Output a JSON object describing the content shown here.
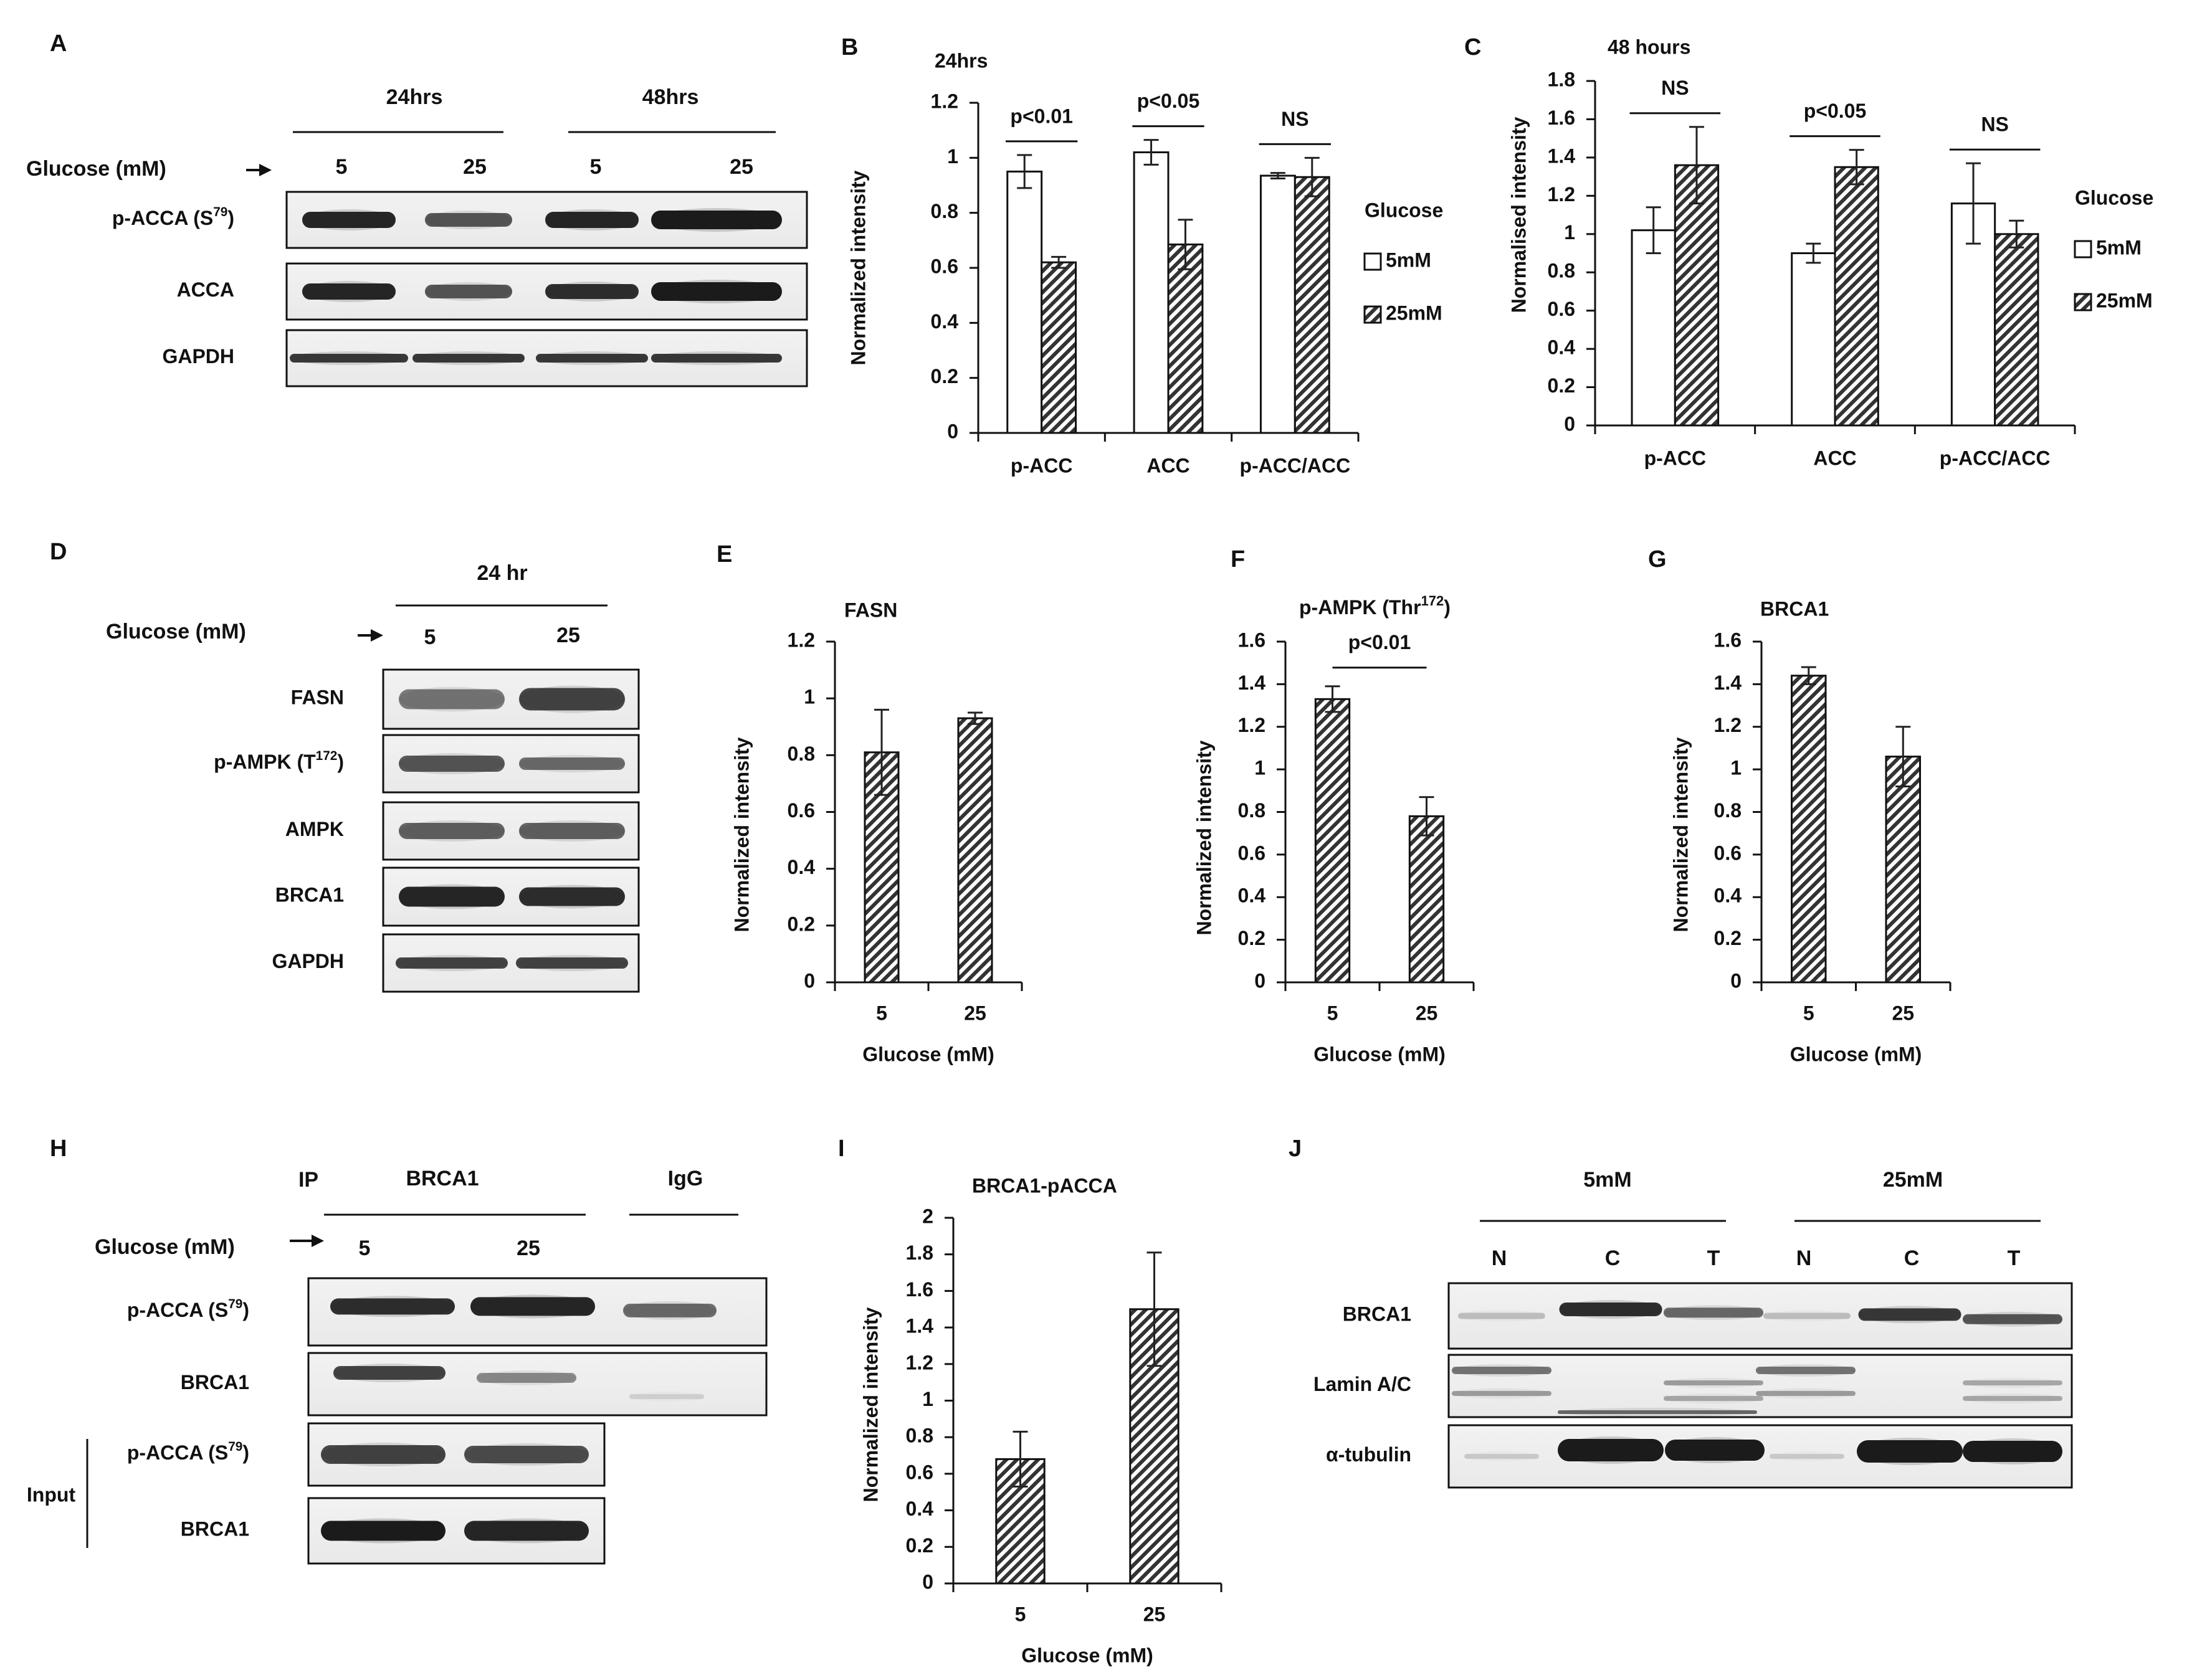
{
  "panels": {
    "A": {
      "letter": "A",
      "time_groups": [
        "24hrs",
        "48hrs"
      ],
      "glucose_label": "Glucose (mM)",
      "lanes": [
        "5",
        "25",
        "5",
        "25"
      ],
      "blots": [
        {
          "label_main": "p-ACCA (S",
          "label_sup": "79",
          "label_end": ")"
        },
        {
          "label_main": "ACCA",
          "label_sup": "",
          "label_end": ""
        },
        {
          "label_main": "GAPDH",
          "label_sup": "",
          "label_end": ""
        }
      ]
    },
    "B": {
      "letter": "B"
    },
    "C": {
      "letter": "C"
    },
    "D": {
      "letter": "D",
      "time_group": "24 hr",
      "glucose_label": "Glucose (mM)",
      "lanes": [
        "5",
        "25"
      ],
      "blots": [
        {
          "label_main": "FASN",
          "label_sup": "",
          "label_end": ""
        },
        {
          "label_main": "p-AMPK (T",
          "label_sup": "172",
          "label_end": ")"
        },
        {
          "label_main": "AMPK",
          "label_sup": "",
          "label_end": ""
        },
        {
          "label_main": "BRCA1",
          "label_sup": "",
          "label_end": ""
        },
        {
          "label_main": "GAPDH",
          "label_sup": "",
          "label_end": ""
        }
      ]
    },
    "E": {
      "letter": "E"
    },
    "F": {
      "letter": "F"
    },
    "G": {
      "letter": "G"
    },
    "H": {
      "letter": "H",
      "ip_label": "IP",
      "ip_target": "BRCA1",
      "igg_label": "IgG",
      "glucose_label": "Glucose (mM)",
      "lanes": [
        "5",
        "25"
      ],
      "input_label": "Input",
      "blots": [
        {
          "label_main": "p-ACCA (S",
          "label_sup": "79",
          "label_end": ")"
        },
        {
          "label_main": "BRCA1",
          "label_sup": "",
          "label_end": ""
        },
        {
          "label_main": "p-ACCA (S",
          "label_sup": "79",
          "label_end": ")"
        },
        {
          "label_main": "BRCA1",
          "label_sup": "",
          "label_end": ""
        }
      ]
    },
    "I": {
      "letter": "I"
    },
    "J": {
      "letter": "J",
      "groups": [
        "5mM",
        "25mM"
      ],
      "lanes": [
        "N",
        "C",
        "T",
        "N",
        "C",
        "T"
      ],
      "blots": [
        {
          "label_main": "BRCA1",
          "label_sup": "",
          "label_end": ""
        },
        {
          "label_main": "Lamin A/C",
          "label_sup": "",
          "label_end": ""
        },
        {
          "label_main": "α-tubulin",
          "label_sup": "",
          "label_end": ""
        }
      ]
    }
  },
  "colors": {
    "open_bar": "#ffffff",
    "hatched_bar": "#333333",
    "axis": "#111111"
  },
  "chart_data": [
    {
      "id": "B",
      "type": "bar",
      "title": "24hrs",
      "categories": [
        "p-ACC",
        "ACC",
        "p-ACC/ACC"
      ],
      "ylabel": "Normalized intensity",
      "ylim": [
        0,
        1.2
      ],
      "yticks": [
        "0",
        "0.2",
        "0.4",
        "0.6",
        "0.8",
        "1",
        "1.2"
      ],
      "legend": {
        "title": "Glucose",
        "position": "right"
      },
      "series": [
        {
          "name": "5mM",
          "fill": "open",
          "values": [
            0.95,
            1.02,
            0.935
          ],
          "errors": [
            0.06,
            0.045,
            0.01
          ]
        },
        {
          "name": "25mM",
          "fill": "hatched",
          "values": [
            0.62,
            0.685,
            0.93
          ],
          "errors": [
            0.02,
            0.09,
            0.07
          ]
        }
      ],
      "significance": [
        "p<0.01",
        "p<0.05",
        "NS"
      ]
    },
    {
      "id": "C",
      "type": "bar",
      "title": "48 hours",
      "categories": [
        "p-ACC",
        "ACC",
        "p-ACC/ACC"
      ],
      "ylabel": "Normalised intensity",
      "ylim": [
        0,
        1.8
      ],
      "yticks": [
        "0",
        "0.2",
        "0.4",
        "0.6",
        "0.8",
        "1",
        "1.2",
        "1.4",
        "1.6",
        "1.8"
      ],
      "legend": {
        "title": "Glucose",
        "position": "right"
      },
      "series": [
        {
          "name": "5mM",
          "fill": "open",
          "values": [
            1.02,
            0.9,
            1.16
          ],
          "errors": [
            0.12,
            0.05,
            0.21
          ]
        },
        {
          "name": "25mM",
          "fill": "hatched",
          "values": [
            1.36,
            1.35,
            1.0
          ],
          "errors": [
            0.2,
            0.09,
            0.07
          ]
        }
      ],
      "significance": [
        "NS",
        "p<0.05",
        "NS"
      ]
    },
    {
      "id": "E",
      "type": "bar",
      "title": "FASN",
      "categories": [
        "5",
        "25"
      ],
      "xlabel": "Glucose (mM)",
      "ylabel": "Normalized intensity",
      "ylim": [
        0,
        1.2
      ],
      "yticks": [
        "0",
        "0.2",
        "0.4",
        "0.6",
        "0.8",
        "1",
        "1.2"
      ],
      "values": [
        0.81,
        0.93
      ],
      "errors": [
        0.15,
        0.02
      ],
      "significance": ""
    },
    {
      "id": "F",
      "type": "bar",
      "title": "p-AMPK (Thr",
      "title_sup": "172",
      "title_end": ")",
      "categories": [
        "5",
        "25"
      ],
      "xlabel": "Glucose (mM)",
      "ylabel": "Normalized intensity",
      "ylim": [
        0,
        1.6
      ],
      "yticks": [
        "0",
        "0.2",
        "0.4",
        "0.6",
        "0.8",
        "1",
        "1.2",
        "1.4",
        "1.6"
      ],
      "values": [
        1.33,
        0.78
      ],
      "errors": [
        0.06,
        0.09
      ],
      "significance": "p<0.01"
    },
    {
      "id": "G",
      "type": "bar",
      "title": "BRCA1",
      "categories": [
        "5",
        "25"
      ],
      "xlabel": "Glucose (mM)",
      "ylabel": "Normalized intensity",
      "ylim": [
        0,
        1.6
      ],
      "yticks": [
        "0",
        "0.2",
        "0.4",
        "0.6",
        "0.8",
        "1",
        "1.2",
        "1.4",
        "1.6"
      ],
      "values": [
        1.44,
        1.06
      ],
      "errors": [
        0.04,
        0.14
      ],
      "significance": ""
    },
    {
      "id": "I",
      "type": "bar",
      "title": "BRCA1-pACCA",
      "categories": [
        "5",
        "25"
      ],
      "xlabel": "Glucose (mM)",
      "ylabel": "Normalized intensity",
      "ylim": [
        0,
        2
      ],
      "yticks": [
        "0",
        "0.2",
        "0.4",
        "0.6",
        "0.8",
        "1",
        "1.2",
        "1.4",
        "1.6",
        "1.8",
        "2"
      ],
      "values": [
        0.68,
        1.5
      ],
      "errors": [
        0.15,
        0.31
      ],
      "significance": ""
    }
  ]
}
